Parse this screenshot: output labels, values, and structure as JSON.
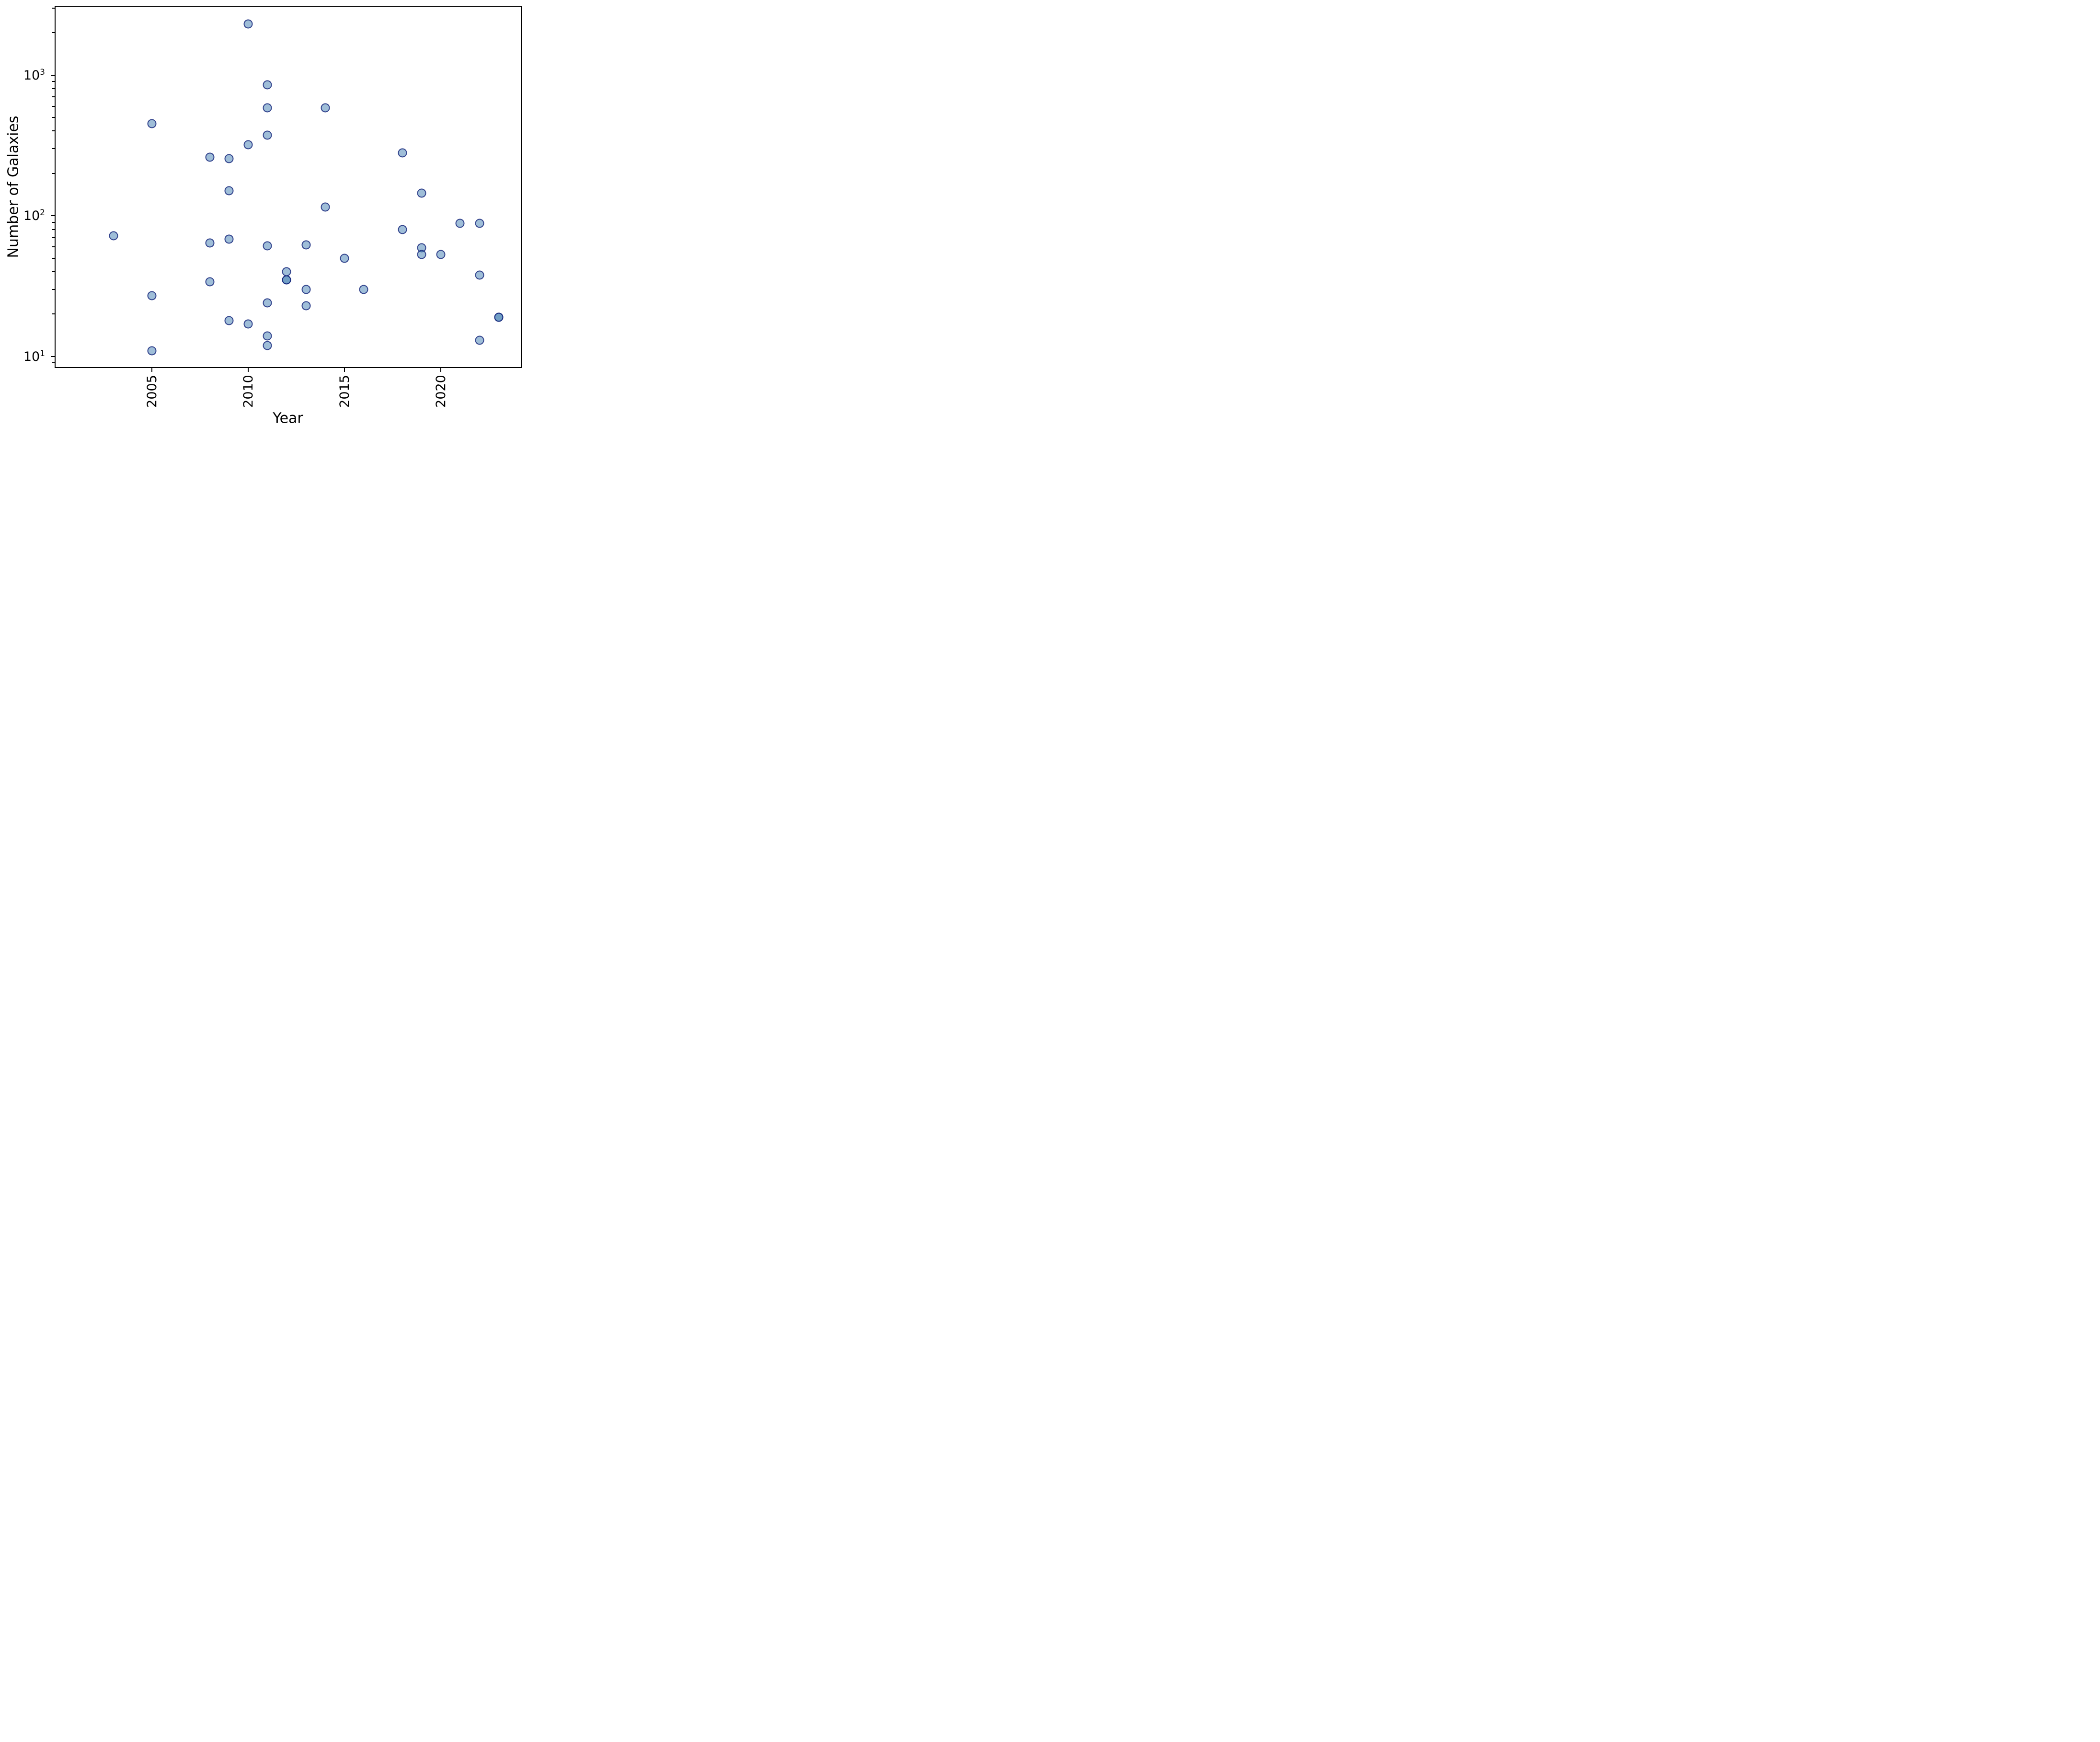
{
  "chart_data": {
    "type": "scatter",
    "title": "",
    "xlabel": "Year",
    "ylabel": "Number of Galaxies",
    "x_scale": "linear",
    "y_scale": "log",
    "xlim": [
      2000,
      2024.15
    ],
    "ylim": [
      8.4,
      3060
    ],
    "grid": false,
    "legend": null,
    "x_major_ticks": [
      2005,
      2010,
      2015,
      2020
    ],
    "y_major_tick_exponents": [
      1,
      2,
      3
    ],
    "y_minor_ticks": [
      9,
      20,
      30,
      40,
      50,
      60,
      70,
      80,
      90,
      200,
      300,
      400,
      500,
      600,
      700,
      800,
      900,
      2000,
      3000
    ],
    "marker": {
      "shape": "circle",
      "fill_color": "#4682b4",
      "fill_opacity": 0.52,
      "edge_color": "#081470",
      "edge_opacity": 0.72,
      "note": "darker markers are two overlapping points"
    },
    "points": [
      {
        "year": 2003,
        "galaxies": 72
      },
      {
        "year": 2005,
        "galaxies": 450
      },
      {
        "year": 2005,
        "galaxies": 27
      },
      {
        "year": 2005,
        "galaxies": 11
      },
      {
        "year": 2008,
        "galaxies": 260
      },
      {
        "year": 2008,
        "galaxies": 64
      },
      {
        "year": 2008,
        "galaxies": 34
      },
      {
        "year": 2009,
        "galaxies": 255
      },
      {
        "year": 2009,
        "galaxies": 150
      },
      {
        "year": 2009,
        "galaxies": 68
      },
      {
        "year": 2009,
        "galaxies": 18
      },
      {
        "year": 2010,
        "galaxies": 2300
      },
      {
        "year": 2010,
        "galaxies": 320
      },
      {
        "year": 2010,
        "galaxies": 17
      },
      {
        "year": 2011,
        "galaxies": 850
      },
      {
        "year": 2011,
        "galaxies": 585
      },
      {
        "year": 2011,
        "galaxies": 375
      },
      {
        "year": 2011,
        "galaxies": 61
      },
      {
        "year": 2011,
        "galaxies": 24
      },
      {
        "year": 2011,
        "galaxies": 14
      },
      {
        "year": 2011,
        "galaxies": 12
      },
      {
        "year": 2012,
        "galaxies": 40
      },
      {
        "year": 2012,
        "galaxies": 35
      },
      {
        "year": 2012,
        "galaxies": 35
      },
      {
        "year": 2013,
        "galaxies": 62
      },
      {
        "year": 2013,
        "galaxies": 30
      },
      {
        "year": 2013,
        "galaxies": 23
      },
      {
        "year": 2014,
        "galaxies": 585
      },
      {
        "year": 2014,
        "galaxies": 115
      },
      {
        "year": 2015,
        "galaxies": 50
      },
      {
        "year": 2016,
        "galaxies": 30
      },
      {
        "year": 2018,
        "galaxies": 280
      },
      {
        "year": 2018,
        "galaxies": 80
      },
      {
        "year": 2019,
        "galaxies": 145
      },
      {
        "year": 2019,
        "galaxies": 59
      },
      {
        "year": 2019,
        "galaxies": 53
      },
      {
        "year": 2020,
        "galaxies": 53
      },
      {
        "year": 2021,
        "galaxies": 88
      },
      {
        "year": 2022,
        "galaxies": 88
      },
      {
        "year": 2022,
        "galaxies": 38
      },
      {
        "year": 2022,
        "galaxies": 13
      },
      {
        "year": 2023,
        "galaxies": 19
      },
      {
        "year": 2023,
        "galaxies": 19
      }
    ]
  }
}
